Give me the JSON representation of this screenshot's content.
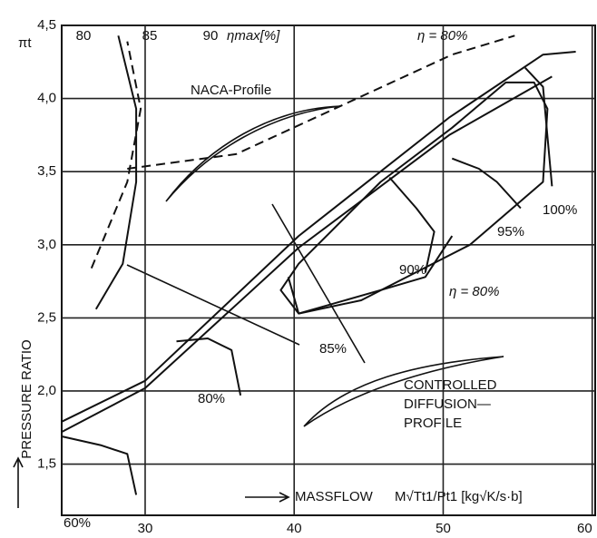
{
  "chart_data": {
    "type": "line",
    "y_label": "πt",
    "y_axis_title": "PRESSURE RATIO",
    "x_axis_title": "MASSFLOW",
    "x_unit": "M√Tt1/Pt1 [kg√K/s·b]",
    "xlim": [
      24.4,
      60.2
    ],
    "ylim": [
      1.15,
      4.5
    ],
    "xticks": [
      30,
      40,
      50,
      60
    ],
    "yticks": [
      {
        "value": 1.5,
        "label": "1,5"
      },
      {
        "value": 2.0,
        "label": "2,0"
      },
      {
        "value": 2.5,
        "label": "2,5"
      },
      {
        "value": 3.0,
        "label": "3,0"
      },
      {
        "value": 3.5,
        "label": "3,5"
      },
      {
        "value": 4.0,
        "label": "4,0"
      },
      {
        "value": 4.5,
        "label": "4,5"
      }
    ],
    "grid": true,
    "top_scale": {
      "ticks": [
        80,
        85,
        90
      ],
      "label": "ηmax[%]"
    },
    "annotations": [
      "η = 80%",
      "NACA-Profile",
      "CONTROLLED",
      "DIFFUSION—",
      "PROFILE"
    ],
    "series": [
      {
        "name": "60%",
        "color": "#111111",
        "style": "solid",
        "x": [
          24.4,
          27,
          28.8,
          29.4
        ],
        "values": [
          1.69,
          1.63,
          1.57,
          1.29
        ]
      },
      {
        "name": "80%",
        "color": "#111111",
        "style": "solid",
        "x": [
          32.1,
          34.2,
          35.8,
          36.4
        ],
        "values": [
          2.34,
          2.36,
          2.28,
          1.97
        ]
      },
      {
        "name": "85%",
        "color": "#111111",
        "style": "solid",
        "x": [
          39.6,
          40.3,
          45.8,
          48.8,
          50.6
        ],
        "values": [
          2.78,
          2.53,
          2.69,
          2.78,
          3.06
        ]
      },
      {
        "name": "90%",
        "color": "#111111",
        "style": "solid",
        "x": [
          46.4,
          48.2,
          49.4,
          48.8
        ],
        "values": [
          3.46,
          3.25,
          3.09,
          2.81
        ]
      },
      {
        "name": "95%",
        "color": "#111111",
        "style": "solid",
        "x": [
          50.6,
          52.4,
          53.6,
          55.2
        ],
        "values": [
          3.59,
          3.52,
          3.43,
          3.25
        ]
      },
      {
        "name": "100%",
        "color": "#111111",
        "style": "solid",
        "x": [
          55.5,
          56.7,
          57.0,
          57.3
        ],
        "values": [
          4.21,
          4.08,
          3.74,
          3.4
        ]
      },
      {
        "name": "η = 80%",
        "color": "#111111",
        "style": "solid",
        "x": [
          40.3,
          44.5,
          51.8,
          56.7,
          57.0,
          56.1,
          54.2,
          50.6,
          45.8,
          40.3,
          39.1,
          40.3
        ],
        "values": [
          2.53,
          2.62,
          3.0,
          3.43,
          3.93,
          4.11,
          4.11,
          3.8,
          3.43,
          2.87,
          2.69,
          2.53
        ]
      },
      {
        "color": "#111111",
        "style": "solid",
        "x": [
          24.4,
          30,
          40.3,
          50.4,
          56.7,
          58.9
        ],
        "values": [
          1.79,
          2.07,
          3.06,
          3.87,
          4.3,
          4.32
        ]
      },
      {
        "color": "#111111",
        "style": "solid",
        "x": [
          24.4,
          30,
          40.3,
          50.4,
          57.3
        ],
        "values": [
          1.72,
          2.02,
          2.98,
          3.75,
          4.15
        ]
      },
      {
        "color": "#111111",
        "style": "solid",
        "x": [
          26.7,
          28.5,
          29.4,
          29.4,
          28.2
        ],
        "values": [
          2.56,
          2.87,
          3.43,
          3.93,
          4.43
        ]
      },
      {
        "color": "#111111",
        "style": "dashed",
        "x": [
          26.4,
          28.8,
          29.7,
          28.8
        ],
        "values": [
          2.84,
          3.43,
          3.93,
          4.39
        ]
      },
      {
        "color": "#111111",
        "style": "dashed",
        "x": [
          28.8,
          36.1,
          50.6,
          54.8
        ],
        "values": [
          3.52,
          3.62,
          4.3,
          4.43
        ]
      }
    ]
  }
}
